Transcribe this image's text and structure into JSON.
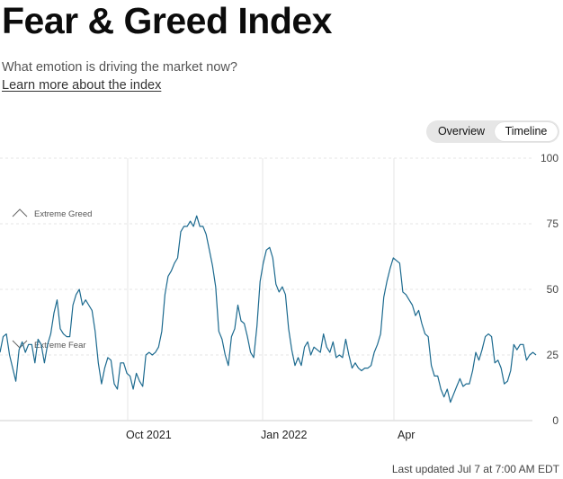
{
  "header": {
    "title": "Fear & Greed Index",
    "subtitle": "What emotion is driving the market now?",
    "learn_more": "Learn more about the index"
  },
  "toggle": {
    "overview_label": "Overview",
    "timeline_label": "Timeline",
    "selected": "Timeline"
  },
  "footer": {
    "last_updated": "Last updated Jul 7 at 7:00 AM EDT"
  },
  "colors": {
    "line": "#1c6a8f",
    "grid": "#e4e4e4",
    "axis": "#cfcfcf",
    "text": "#0c0c0c"
  },
  "chart_data": {
    "type": "line",
    "ylim": [
      0,
      100
    ],
    "yticks": [
      0,
      25,
      50,
      75,
      100
    ],
    "x_tick_labels": [
      "Oct 2021",
      "Jan 2022",
      "Apr"
    ],
    "grid": "horizontal dashed",
    "annotations": [
      {
        "text": "Extreme Greed",
        "icon": "chevron-up-icon",
        "y": 75
      },
      {
        "text": "Extreme Fear",
        "icon": "chevron-down-icon",
        "y": 25
      }
    ],
    "series": [
      {
        "values": [
          26,
          32,
          33,
          25,
          20,
          15,
          27,
          30,
          26,
          29,
          29,
          22,
          31,
          29,
          22,
          29,
          33,
          41,
          46,
          35,
          33,
          32,
          32,
          44,
          48,
          50,
          44,
          46,
          44,
          42,
          34,
          22,
          14,
          20,
          24,
          23,
          14,
          12,
          22,
          22,
          18,
          17,
          12,
          18,
          15,
          13,
          25,
          26,
          25,
          26,
          28,
          34,
          48,
          55,
          57,
          60,
          62,
          72,
          74,
          74,
          76,
          74,
          78,
          74,
          74,
          71,
          65,
          59,
          51,
          34,
          31,
          25,
          21,
          32,
          35,
          44,
          38,
          37,
          32,
          26,
          24,
          36,
          53,
          60,
          65,
          66,
          62,
          52,
          49,
          51,
          48,
          35,
          27,
          21,
          24,
          21,
          28,
          30,
          25,
          28,
          27,
          26,
          33,
          28,
          26,
          30,
          24,
          25,
          24,
          31,
          25,
          20,
          22,
          20,
          19,
          20,
          20,
          21,
          26,
          29,
          33,
          47,
          53,
          58,
          62,
          61,
          60,
          49,
          48,
          46,
          44,
          40,
          42,
          37,
          33,
          32,
          21,
          17,
          17,
          12,
          9,
          12,
          7,
          10,
          13,
          16,
          13,
          14,
          14,
          19,
          26,
          23,
          27,
          32,
          33,
          32,
          22,
          23,
          20,
          14,
          15,
          19,
          29,
          27,
          29,
          29,
          23,
          25,
          26,
          25
        ]
      }
    ]
  }
}
